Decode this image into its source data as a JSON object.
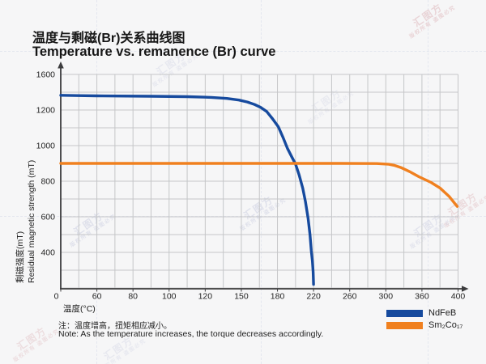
{
  "chart_data": {
    "type": "line",
    "title_zh": "温度与剩磁(Br)关系曲线图",
    "title_en": "Temperature vs. remanence (Br) curve",
    "xlabel": "温度(°C)",
    "ylabel_zh": "剩磁强度(mT)",
    "ylabel_en": "Residual magnetic strength (mT)",
    "x_tick_labels": [
      0,
      60,
      80,
      100,
      120,
      150,
      180,
      220,
      260,
      300,
      360,
      400
    ],
    "y_axis_values": [
      1600,
      1200,
      1000,
      800,
      600,
      400,
      0
    ],
    "origin_label": "0",
    "grid": true,
    "legend_position": "bottom-right",
    "axis_note": "tick labels are evenly spaced with non-uniform increments (stylized axes)",
    "ylim": [
      0,
      1600
    ],
    "xlim": [
      0,
      400
    ],
    "series": [
      {
        "key": "ndfeb",
        "name": "NdFeB",
        "color": "#164a9e",
        "points": [
          [
            0,
            1365
          ],
          [
            30,
            1362
          ],
          [
            60,
            1359
          ],
          [
            90,
            1355
          ],
          [
            110,
            1350
          ],
          [
            125,
            1342
          ],
          [
            138,
            1330
          ],
          [
            148,
            1312
          ],
          [
            155,
            1290
          ],
          [
            161,
            1262
          ],
          [
            166,
            1230
          ],
          [
            171,
            1192
          ],
          [
            176,
            1150
          ],
          [
            181,
            1105
          ],
          [
            186,
            1048
          ],
          [
            191,
            985
          ],
          [
            196,
            935
          ],
          [
            200,
            897
          ],
          [
            204,
            835
          ],
          [
            208,
            760
          ],
          [
            211,
            685
          ],
          [
            214,
            590
          ],
          [
            216,
            500
          ],
          [
            217.5,
            410
          ],
          [
            218.7,
            300
          ],
          [
            219.5,
            180
          ],
          [
            220,
            40
          ]
        ]
      },
      {
        "key": "sm2co17",
        "name": "Sm₂Co₁₇",
        "color": "#f0801f",
        "points": [
          [
            0,
            900
          ],
          [
            50,
            900
          ],
          [
            100,
            900
          ],
          [
            150,
            900
          ],
          [
            200,
            900
          ],
          [
            250,
            900
          ],
          [
            290,
            899
          ],
          [
            305,
            895
          ],
          [
            315,
            888
          ],
          [
            325,
            877
          ],
          [
            340,
            853
          ],
          [
            355,
            825
          ],
          [
            370,
            793
          ],
          [
            380,
            762
          ],
          [
            390,
            715
          ],
          [
            399,
            658
          ]
        ]
      }
    ]
  },
  "notes": {
    "zh": "注：温度增高，扭矩相应减小。",
    "en": "Note: As the temperature increases, the torque decreases accordingly."
  },
  "watermark": {
    "text": "汇图方",
    "subtext": "版权所有 盗图必究"
  },
  "colors": {
    "background": "#f6f6f7",
    "gridline": "#c5c6c8",
    "axis": "#3c3c3e",
    "ndfeb_blue": "#164a9e",
    "sm2co17_orange": "#f0801f"
  }
}
